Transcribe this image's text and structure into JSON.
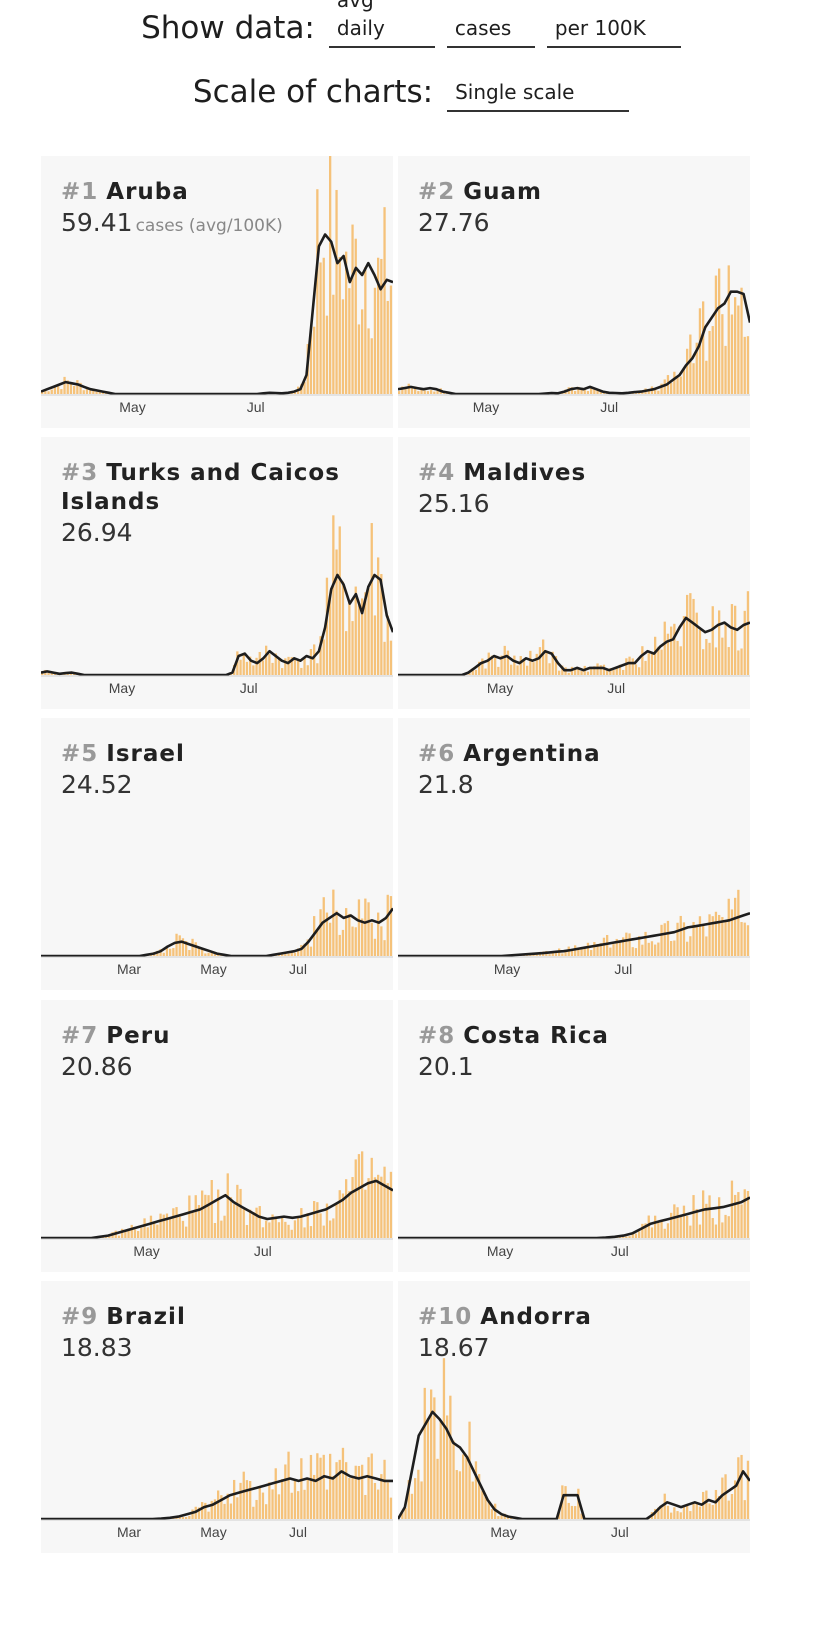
{
  "controls": {
    "show_data_label": "Show data:",
    "metric": "avg daily",
    "measure": "cases",
    "normalization": "per 100K",
    "scale_label": "Scale of charts:",
    "scale": "Single scale"
  },
  "colors": {
    "bar": "#f5c27a",
    "line": "#1e1e1e",
    "card_bg": "#f7f7f7"
  },
  "countries": [
    {
      "rank": "#1",
      "name": "Aruba",
      "value": "59.41",
      "unit": "cases (avg/100K)",
      "ticks": [
        {
          "label": "May",
          "pos": 0.26
        },
        {
          "label": "Jul",
          "pos": 0.61
        }
      ],
      "line": [
        0.01,
        0.02,
        0.03,
        0.04,
        0.05,
        0.045,
        0.04,
        0.03,
        0.02,
        0.015,
        0.01,
        0.005,
        0,
        0,
        0,
        0,
        0,
        0,
        0,
        0,
        0,
        0,
        0,
        0,
        0,
        0,
        0,
        0,
        0,
        0,
        0,
        0,
        0,
        0,
        0,
        0,
        0.003,
        0.005,
        0.004,
        0.003,
        0.005,
        0.01,
        0.02,
        0.08,
        0.35,
        0.62,
        0.67,
        0.64,
        0.55,
        0.58,
        0.47,
        0.53,
        0.5,
        0.55,
        0.5,
        0.44,
        0.48,
        0.47
      ]
    },
    {
      "rank": "#2",
      "name": "Guam",
      "value": "27.76",
      "unit": "",
      "ticks": [
        {
          "label": "May",
          "pos": 0.25
        },
        {
          "label": "Jul",
          "pos": 0.6
        }
      ],
      "line": [
        0.02,
        0.025,
        0.03,
        0.025,
        0.02,
        0.025,
        0.02,
        0.01,
        0.005,
        0,
        0,
        0,
        0,
        0,
        0,
        0,
        0,
        0,
        0,
        0,
        0,
        0,
        0,
        0.002,
        0.004,
        0.003,
        0.01,
        0.02,
        0.025,
        0.02,
        0.03,
        0.02,
        0.01,
        0.005,
        0.004,
        0.003,
        0.005,
        0.008,
        0.01,
        0.015,
        0.02,
        0.03,
        0.04,
        0.06,
        0.08,
        0.12,
        0.15,
        0.2,
        0.28,
        0.32,
        0.36,
        0.38,
        0.43,
        0.43,
        0.42,
        0.3
      ]
    },
    {
      "rank": "#3",
      "name": "Turks and Caicos Islands",
      "value": "26.94",
      "unit": "",
      "ticks": [
        {
          "label": "May",
          "pos": 0.23
        },
        {
          "label": "Jul",
          "pos": 0.59
        }
      ],
      "line": [
        0.01,
        0.015,
        0.01,
        0.005,
        0.008,
        0.01,
        0.005,
        0,
        0,
        0,
        0,
        0,
        0,
        0,
        0,
        0,
        0,
        0,
        0,
        0,
        0,
        0,
        0,
        0,
        0,
        0,
        0,
        0,
        0,
        0,
        0,
        0.01,
        0.08,
        0.09,
        0.06,
        0.05,
        0.07,
        0.1,
        0.08,
        0.06,
        0.05,
        0.07,
        0.06,
        0.08,
        0.07,
        0.1,
        0.2,
        0.36,
        0.42,
        0.38,
        0.3,
        0.34,
        0.26,
        0.37,
        0.42,
        0.4,
        0.25,
        0.18
      ]
    },
    {
      "rank": "#4",
      "name": "Maldives",
      "value": "25.16",
      "unit": "",
      "ticks": [
        {
          "label": "May",
          "pos": 0.29
        },
        {
          "label": "Jul",
          "pos": 0.62
        }
      ],
      "line": [
        0,
        0,
        0,
        0,
        0,
        0,
        0,
        0,
        0,
        0,
        0,
        0.01,
        0.03,
        0.05,
        0.06,
        0.08,
        0.07,
        0.08,
        0.06,
        0.05,
        0.07,
        0.06,
        0.07,
        0.1,
        0.09,
        0.05,
        0.02,
        0.02,
        0.03,
        0.02,
        0.03,
        0.03,
        0.03,
        0.02,
        0.03,
        0.04,
        0.05,
        0.05,
        0.08,
        0.1,
        0.09,
        0.12,
        0.14,
        0.15,
        0.2,
        0.24,
        0.22,
        0.2,
        0.18,
        0.19,
        0.21,
        0.22,
        0.2,
        0.19,
        0.21,
        0.22
      ]
    },
    {
      "rank": "#5",
      "name": "Israel",
      "value": "24.52",
      "unit": "",
      "ticks": [
        {
          "label": "Mar",
          "pos": 0.25
        },
        {
          "label": "May",
          "pos": 0.49
        },
        {
          "label": "Jul",
          "pos": 0.73
        }
      ],
      "line": [
        0,
        0,
        0,
        0,
        0,
        0,
        0,
        0,
        0,
        0,
        0,
        0,
        0,
        0,
        0,
        0.005,
        0.01,
        0.02,
        0.04,
        0.055,
        0.06,
        0.05,
        0.04,
        0.03,
        0.02,
        0.01,
        0.005,
        0,
        0,
        0,
        0,
        0,
        0,
        0.005,
        0.01,
        0.015,
        0.02,
        0.03,
        0.06,
        0.1,
        0.14,
        0.16,
        0.18,
        0.16,
        0.17,
        0.15,
        0.14,
        0.15,
        0.14,
        0.16,
        0.2
      ]
    },
    {
      "rank": "#6",
      "name": "Argentina",
      "value": "21.8",
      "unit": "",
      "ticks": [
        {
          "label": "May",
          "pos": 0.31
        },
        {
          "label": "Jul",
          "pos": 0.64
        }
      ],
      "line": [
        0,
        0,
        0,
        0,
        0,
        0,
        0,
        0,
        0,
        0,
        0,
        0,
        0,
        0,
        0,
        0,
        0.002,
        0.004,
        0.006,
        0.008,
        0.01,
        0.012,
        0.015,
        0.018,
        0.02,
        0.025,
        0.03,
        0.035,
        0.04,
        0.045,
        0.05,
        0.055,
        0.06,
        0.065,
        0.07,
        0.075,
        0.08,
        0.085,
        0.09,
        0.095,
        0.1,
        0.11,
        0.12,
        0.125,
        0.13,
        0.135,
        0.14,
        0.145,
        0.15,
        0.16,
        0.17,
        0.18
      ]
    },
    {
      "rank": "#7",
      "name": "Peru",
      "value": "20.86",
      "unit": "",
      "ticks": [
        {
          "label": "May",
          "pos": 0.3
        },
        {
          "label": "Jul",
          "pos": 0.63
        }
      ],
      "line": [
        0,
        0,
        0,
        0,
        0,
        0,
        0,
        0.005,
        0.01,
        0.02,
        0.03,
        0.04,
        0.05,
        0.06,
        0.07,
        0.08,
        0.09,
        0.1,
        0.11,
        0.12,
        0.14,
        0.16,
        0.18,
        0.15,
        0.13,
        0.11,
        0.09,
        0.08,
        0.085,
        0.09,
        0.085,
        0.09,
        0.1,
        0.11,
        0.12,
        0.14,
        0.16,
        0.19,
        0.21,
        0.23,
        0.24,
        0.22,
        0.2
      ]
    },
    {
      "rank": "#8",
      "name": "Costa Rica",
      "value": "20.1",
      "unit": "",
      "ticks": [
        {
          "label": "May",
          "pos": 0.29
        },
        {
          "label": "Jul",
          "pos": 0.63
        }
      ],
      "line": [
        0,
        0,
        0,
        0,
        0,
        0,
        0,
        0,
        0,
        0,
        0,
        0,
        0,
        0,
        0,
        0,
        0,
        0,
        0,
        0,
        0,
        0,
        0,
        0.002,
        0.005,
        0.01,
        0.02,
        0.04,
        0.06,
        0.07,
        0.08,
        0.09,
        0.1,
        0.11,
        0.12,
        0.125,
        0.13,
        0.14,
        0.15,
        0.17
      ]
    },
    {
      "rank": "#9",
      "name": "Brazil",
      "value": "18.83",
      "unit": "",
      "ticks": [
        {
          "label": "Mar",
          "pos": 0.25
        },
        {
          "label": "May",
          "pos": 0.49
        },
        {
          "label": "Jul",
          "pos": 0.73
        }
      ],
      "line": [
        0,
        0,
        0,
        0,
        0,
        0,
        0,
        0,
        0,
        0,
        0,
        0,
        0,
        0,
        0.002,
        0.005,
        0.01,
        0.02,
        0.03,
        0.05,
        0.06,
        0.08,
        0.1,
        0.11,
        0.12,
        0.13,
        0.14,
        0.15,
        0.16,
        0.17,
        0.16,
        0.17,
        0.16,
        0.18,
        0.17,
        0.2,
        0.18,
        0.17,
        0.18,
        0.17,
        0.16,
        0.16
      ]
    },
    {
      "rank": "#10",
      "name": "Andorra",
      "value": "18.67",
      "unit": "",
      "ticks": [
        {
          "label": "May",
          "pos": 0.3
        },
        {
          "label": "Jul",
          "pos": 0.63
        }
      ],
      "line": [
        0,
        0.05,
        0.2,
        0.35,
        0.4,
        0.45,
        0.42,
        0.38,
        0.32,
        0.3,
        0.26,
        0.2,
        0.14,
        0.08,
        0.04,
        0.02,
        0.01,
        0.005,
        0,
        0,
        0,
        0,
        0,
        0,
        0.1,
        0.1,
        0.1,
        0,
        0,
        0,
        0,
        0,
        0,
        0,
        0,
        0,
        0,
        0.02,
        0.05,
        0.07,
        0.06,
        0.05,
        0.06,
        0.07,
        0.06,
        0.08,
        0.07,
        0.1,
        0.12,
        0.14,
        0.2,
        0.16
      ]
    }
  ]
}
